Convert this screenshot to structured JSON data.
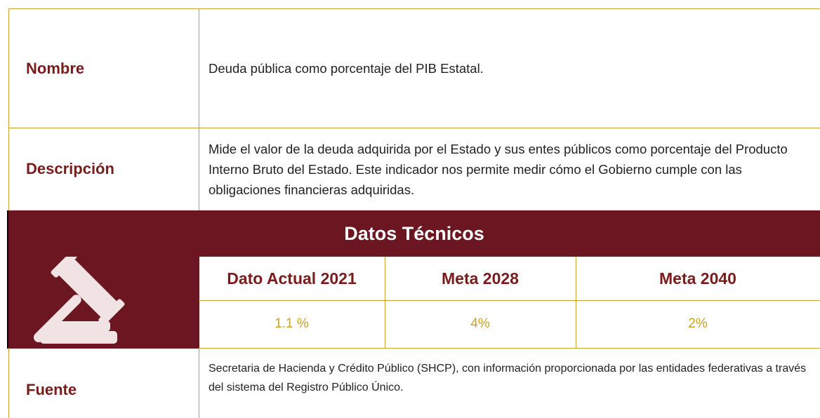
{
  "rows": [
    {
      "label": "Nombre",
      "text": "Deuda pública como porcentaje del PIB Estatal."
    },
    {
      "label": "Descripción",
      "text": "Mide el valor de la deuda adquirida por el Estado y sus entes públicos como porcentaje del Producto Interno Bruto del Estado. Este indicador nos permite medir cómo el Gobierno cumple con las obligaciones financieras adquiridas."
    }
  ],
  "section_title": "Datos Técnicos",
  "indicators": {
    "headers": [
      "Dato Actual 2021",
      "Meta 2028",
      "Meta 2040"
    ],
    "values": [
      "1.1 %",
      "4%",
      "2%"
    ]
  },
  "source": {
    "label": "Fuente",
    "text": "Secretaria de Hacienda y Crédito Público (SHCP), con información proporcionada por las entidades federativas a través del sistema del Registro Público Único."
  }
}
